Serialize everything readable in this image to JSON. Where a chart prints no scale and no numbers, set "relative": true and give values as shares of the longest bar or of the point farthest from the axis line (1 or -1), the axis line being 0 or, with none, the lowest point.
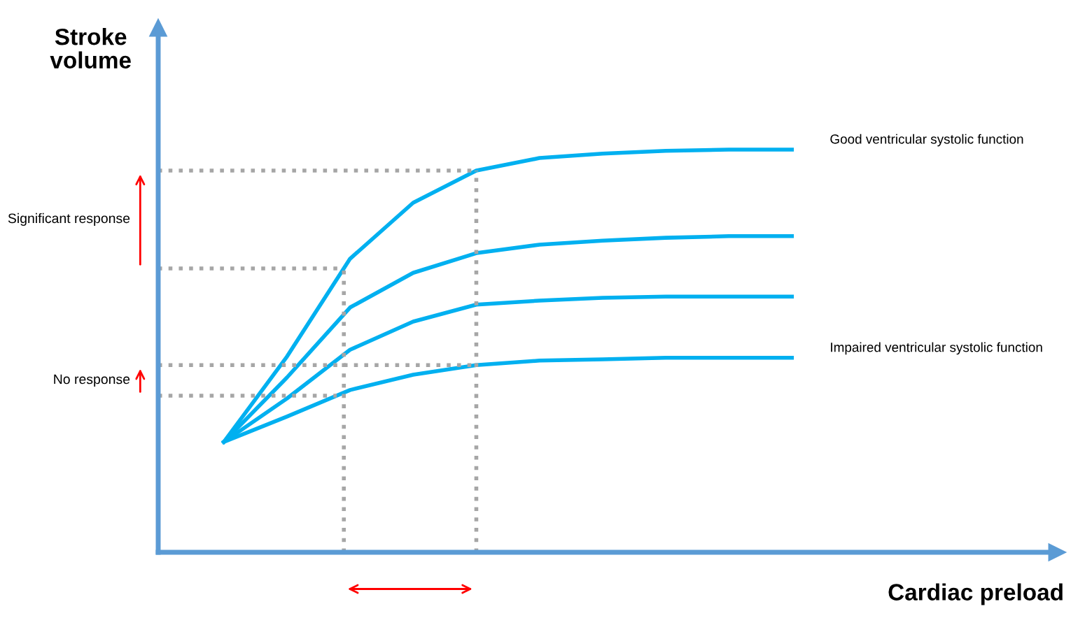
{
  "chart_data": {
    "type": "line",
    "relative": true,
    "xlabel": "Cardiac preload",
    "ylabel": "Stroke\nvolume",
    "categories": [
      null,
      null,
      null,
      null,
      null,
      null,
      null,
      null,
      null,
      null
    ],
    "series": [
      {
        "name": "Good ventricular systolic function",
        "color": "#00b0f0",
        "values": [
          0.274,
          0.486,
          0.729,
          0.868,
          0.948,
          0.979,
          0.99,
          0.997,
          1,
          1
        ]
      },
      {
        "color": "#00b0f0",
        "values": [
          0.274,
          0.434,
          0.608,
          0.694,
          0.743,
          0.764,
          0.774,
          0.781,
          0.785,
          0.785
        ]
      },
      {
        "color": "#00b0f0",
        "values": [
          0.274,
          0.382,
          0.503,
          0.573,
          0.615,
          0.625,
          0.632,
          0.635,
          0.635,
          0.635
        ]
      },
      {
        "name": "Impaired ventricular systolic function",
        "color": "#00b0f0",
        "values": [
          0.274,
          0.337,
          0.403,
          0.441,
          0.465,
          0.476,
          0.479,
          0.483,
          0.483,
          0.483
        ]
      }
    ],
    "ref_lines": [
      {
        "axis": "y",
        "value": 0.948,
        "color": "#a6a6a6",
        "line_style": "dotted"
      },
      {
        "axis": "y",
        "value": 0.705,
        "color": "#a6a6a6",
        "line_style": "dotted"
      },
      {
        "axis": "y",
        "value": 0.465,
        "color": "#a6a6a6",
        "line_style": "dotted"
      },
      {
        "axis": "y",
        "value": 0.389,
        "color": "#a6a6a6",
        "line_style": "dotted"
      }
    ],
    "annotations": [
      "Significant response",
      "No response"
    ],
    "line_style": "solid",
    "marker": "none",
    "legend": false
  }
}
